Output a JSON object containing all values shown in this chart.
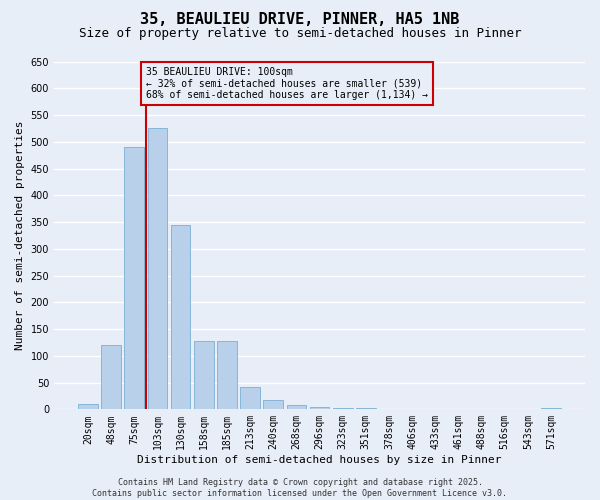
{
  "title": "35, BEAULIEU DRIVE, PINNER, HA5 1NB",
  "subtitle": "Size of property relative to semi-detached houses in Pinner",
  "xlabel": "Distribution of semi-detached houses by size in Pinner",
  "ylabel": "Number of semi-detached properties",
  "categories": [
    "20sqm",
    "48sqm",
    "75sqm",
    "103sqm",
    "130sqm",
    "158sqm",
    "185sqm",
    "213sqm",
    "240sqm",
    "268sqm",
    "296sqm",
    "323sqm",
    "351sqm",
    "378sqm",
    "406sqm",
    "433sqm",
    "461sqm",
    "488sqm",
    "516sqm",
    "543sqm",
    "571sqm"
  ],
  "values": [
    10,
    120,
    490,
    525,
    345,
    128,
    128,
    42,
    18,
    8,
    5,
    3,
    2,
    1,
    1,
    1,
    0,
    0,
    0,
    0,
    3
  ],
  "bar_color": "#b8d0ea",
  "bar_edge_color": "#7aafd4",
  "vline_color": "#cc0000",
  "annotation_text": "35 BEAULIEU DRIVE: 100sqm\n← 32% of semi-detached houses are smaller (539)\n68% of semi-detached houses are larger (1,134) →",
  "annotation_box_color": "#cc0000",
  "ylim": [
    0,
    650
  ],
  "yticks": [
    0,
    50,
    100,
    150,
    200,
    250,
    300,
    350,
    400,
    450,
    500,
    550,
    600,
    650
  ],
  "footer_line1": "Contains HM Land Registry data © Crown copyright and database right 2025.",
  "footer_line2": "Contains public sector information licensed under the Open Government Licence v3.0.",
  "background_color": "#e8eef8",
  "grid_color": "#ffffff",
  "title_fontsize": 11,
  "subtitle_fontsize": 9,
  "axis_label_fontsize": 8,
  "tick_fontsize": 7,
  "footer_fontsize": 6,
  "annotation_fontsize": 7
}
